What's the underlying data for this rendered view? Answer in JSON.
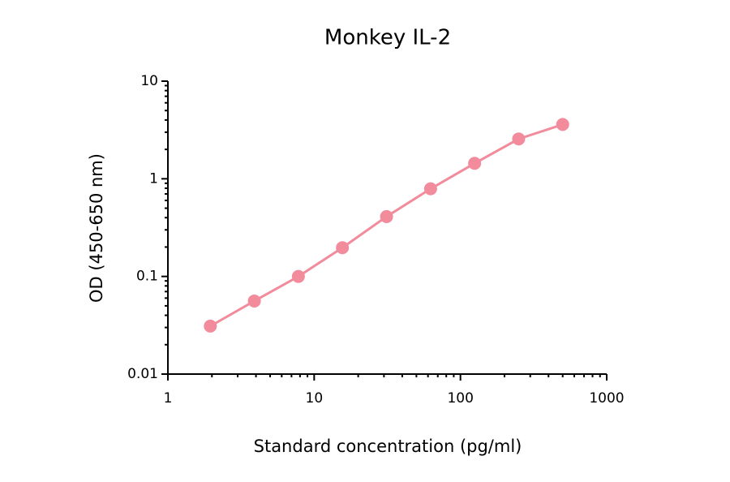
{
  "chart_data": {
    "type": "line",
    "title": "Monkey IL-2",
    "x_label": "Standard concentration (pg/ml)",
    "y_label": "OD (450-650 nm)",
    "x_scale": "log",
    "y_scale": "log",
    "xlim": [
      1,
      1000
    ],
    "xticks": [
      1,
      10,
      100,
      1000
    ],
    "ylim": [
      0.01,
      10
    ],
    "yticks": [
      0.01,
      0.1,
      1,
      10
    ],
    "series": [
      {
        "name": "Monkey IL-2",
        "color": "#f28b9b",
        "x": [
          1.95,
          3.9,
          7.8,
          15.6,
          31.25,
          62.5,
          125,
          250,
          500
        ],
        "values": [
          0.031,
          0.056,
          0.1,
          0.197,
          0.41,
          0.79,
          1.44,
          2.56,
          3.6
        ]
      }
    ]
  }
}
